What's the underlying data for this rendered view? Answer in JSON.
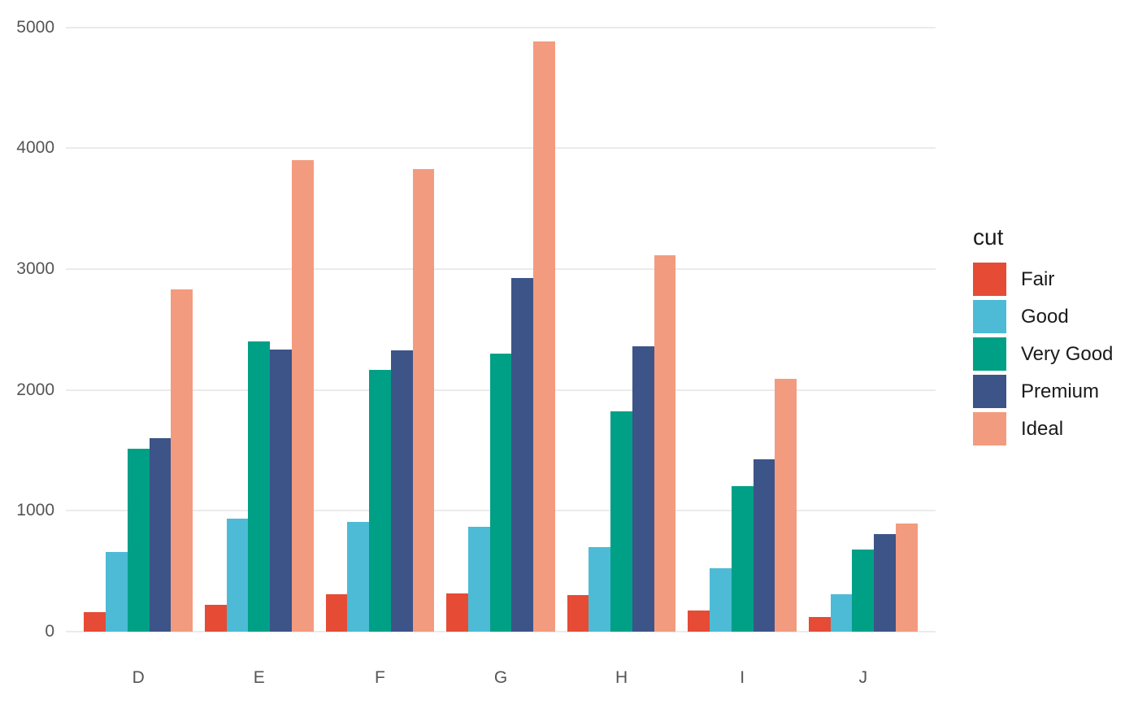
{
  "chart_data": {
    "type": "bar",
    "title": "",
    "xlabel": "",
    "ylabel": "",
    "legend_title": "cut",
    "legend_position": "right",
    "grid": "horizontal-major",
    "background": "#ffffff",
    "gridline_color": "#ebebeb",
    "axis_text_color": "#555555",
    "legend_text_color": "#1a1a1a",
    "categories": [
      "D",
      "E",
      "F",
      "G",
      "H",
      "I",
      "J"
    ],
    "series": [
      {
        "name": "Fair",
        "color": "#E64B35",
        "values": [
          163,
          224,
          312,
          314,
          303,
          175,
          119
        ]
      },
      {
        "name": "Good",
        "color": "#4DBBD5",
        "values": [
          662,
          933,
          909,
          871,
          702,
          522,
          307
        ]
      },
      {
        "name": "Very Good",
        "color": "#00A087",
        "values": [
          1513,
          2400,
          2164,
          2299,
          1824,
          1204,
          678
        ]
      },
      {
        "name": "Premium",
        "color": "#3C5488",
        "values": [
          1603,
          2337,
          2331,
          2924,
          2360,
          1428,
          808
        ]
      },
      {
        "name": "Ideal",
        "color": "#F39B7F",
        "values": [
          2834,
          3903,
          3826,
          4884,
          3115,
          2093,
          896
        ]
      }
    ],
    "y_ticks": [
      0,
      1000,
      2000,
      3000,
      4000,
      5000
    ],
    "ylim": [
      0,
      5140
    ]
  }
}
